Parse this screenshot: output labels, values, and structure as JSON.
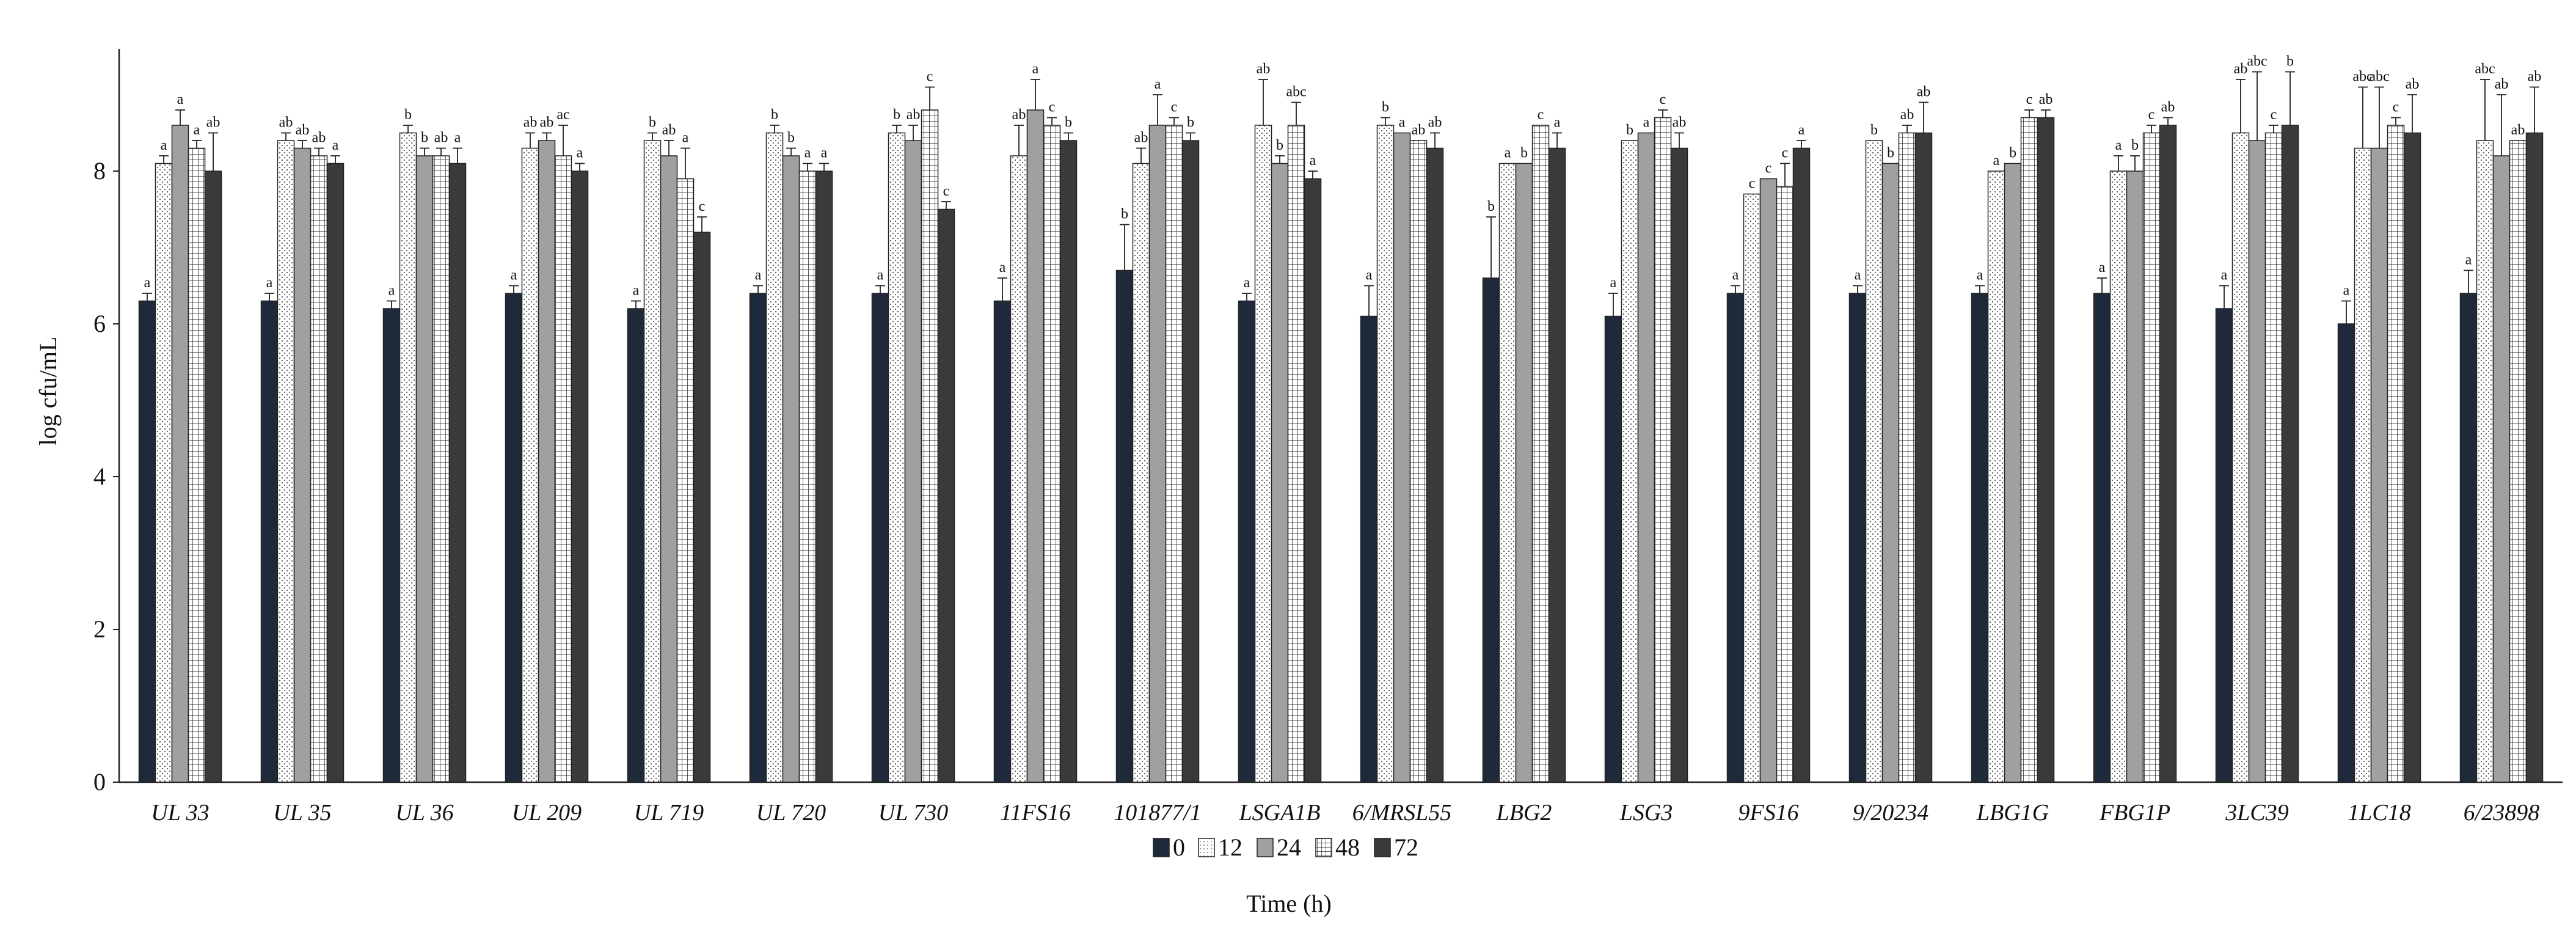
{
  "chart_data": {
    "type": "bar",
    "title": "",
    "xlabel": "Time (h)",
    "ylabel": "log cfu/mL",
    "ylim": [
      0,
      9.6
    ],
    "yticks": [
      0,
      2,
      4,
      6,
      8
    ],
    "grid": false,
    "legend_placement": "bottom-center",
    "categories": [
      "UL 33",
      "UL 35",
      "UL 36",
      "UL 209",
      "UL 719",
      "UL 720",
      "UL 730",
      "11FS16",
      "101877/1",
      "LSGA1B",
      "6/MRSL55",
      "LBG2",
      "LSG3",
      "9FS16",
      "9/20234",
      "LBG1G",
      "FBG1P",
      "3LC39",
      "1LC18",
      "6/23898"
    ],
    "series": [
      {
        "name": "0",
        "color": "#1e2a3a",
        "pattern": "solid-dark",
        "values": [
          6.3,
          6.3,
          6.2,
          6.4,
          6.2,
          6.4,
          6.4,
          6.3,
          6.7,
          6.3,
          6.1,
          6.6,
          6.1,
          6.4,
          6.4,
          6.4,
          6.4,
          6.2,
          6.0,
          6.4
        ],
        "errors": [
          0.1,
          0.1,
          0.1,
          0.1,
          0.1,
          0.1,
          0.1,
          0.3,
          0.6,
          0.1,
          0.4,
          0.8,
          0.3,
          0.1,
          0.1,
          0.1,
          0.2,
          0.3,
          0.3,
          0.3
        ],
        "letters": [
          "a",
          "a",
          "a",
          "a",
          "a",
          "a",
          "a",
          "a",
          "b",
          "a",
          "a",
          "b",
          "a",
          "a",
          "a",
          "a",
          "a",
          "a",
          "a",
          "a"
        ]
      },
      {
        "name": "12",
        "color": "#ffffff",
        "pattern": "dotted",
        "values": [
          8.1,
          8.4,
          8.5,
          8.3,
          8.4,
          8.5,
          8.5,
          8.2,
          8.1,
          8.6,
          8.6,
          8.1,
          8.4,
          7.7,
          8.4,
          8.0,
          8.0,
          8.5,
          8.3,
          8.4
        ],
        "errors": [
          0.1,
          0.1,
          0.1,
          0.2,
          0.1,
          0.1,
          0.1,
          0.4,
          0.2,
          0.6,
          0.1,
          0.0,
          0.0,
          0.0,
          0.0,
          0.0,
          0.2,
          0.7,
          0.8,
          0.8
        ],
        "letters": [
          "a",
          "ab",
          "b",
          "ab",
          "b",
          "b",
          "b",
          "ab",
          "ab",
          "ab",
          "b",
          "a",
          "b",
          "c",
          "b",
          "a",
          "a",
          "ab",
          "abc",
          "abc"
        ]
      },
      {
        "name": "24",
        "color": "#a0a0a0",
        "pattern": "solid-gray",
        "values": [
          8.6,
          8.3,
          8.2,
          8.4,
          8.2,
          8.2,
          8.4,
          8.8,
          8.6,
          8.1,
          8.5,
          8.1,
          8.5,
          7.9,
          8.1,
          8.1,
          8.0,
          8.4,
          8.3,
          8.2
        ],
        "errors": [
          0.2,
          0.1,
          0.1,
          0.1,
          0.2,
          0.1,
          0.2,
          0.4,
          0.4,
          0.1,
          0.0,
          0.0,
          0.0,
          0.0,
          0.0,
          0.0,
          0.2,
          0.9,
          0.8,
          0.8
        ],
        "letters": [
          "a",
          "ab",
          "b",
          "ab",
          "ab",
          "b",
          "ab",
          "a",
          "a",
          "b",
          "a",
          "b",
          "a",
          "c",
          "b",
          "b",
          "b",
          "abc",
          "abc",
          "ab"
        ]
      },
      {
        "name": "48",
        "color": "#ffffff",
        "pattern": "grid",
        "values": [
          8.3,
          8.2,
          8.2,
          8.2,
          7.9,
          8.0,
          8.8,
          8.6,
          8.6,
          8.6,
          8.4,
          8.6,
          8.7,
          7.8,
          8.5,
          8.7,
          8.5,
          8.5,
          8.6,
          8.4
        ],
        "errors": [
          0.1,
          0.1,
          0.1,
          0.4,
          0.4,
          0.1,
          0.3,
          0.1,
          0.1,
          0.3,
          0.0,
          0.0,
          0.1,
          0.3,
          0.1,
          0.1,
          0.1,
          0.1,
          0.1,
          0.0
        ],
        "letters": [
          "a",
          "ab",
          "ab",
          "ac",
          "a",
          "a",
          "c",
          "c",
          "c",
          "abc",
          "ab",
          "c",
          "c",
          "c",
          "ab",
          "c",
          "c",
          "c",
          "c",
          "ab"
        ]
      },
      {
        "name": "72",
        "color": "#3a3a3a",
        "pattern": "solid-darkgray",
        "values": [
          8.0,
          8.1,
          8.1,
          8.0,
          7.2,
          8.0,
          7.5,
          8.4,
          8.4,
          7.9,
          8.3,
          8.3,
          8.3,
          8.3,
          8.5,
          8.7,
          8.6,
          8.6,
          8.5,
          8.5
        ],
        "errors": [
          0.5,
          0.1,
          0.2,
          0.1,
          0.2,
          0.1,
          0.1,
          0.1,
          0.1,
          0.1,
          0.2,
          0.2,
          0.2,
          0.1,
          0.4,
          0.1,
          0.1,
          0.7,
          0.5,
          0.6
        ],
        "letters": [
          "ab",
          "a",
          "a",
          "a",
          "c",
          "a",
          "c",
          "b",
          "b",
          "a",
          "ab",
          "a",
          "ab",
          "a",
          "ab",
          "ab",
          "ab",
          "b",
          "ab",
          "ab"
        ]
      }
    ]
  }
}
